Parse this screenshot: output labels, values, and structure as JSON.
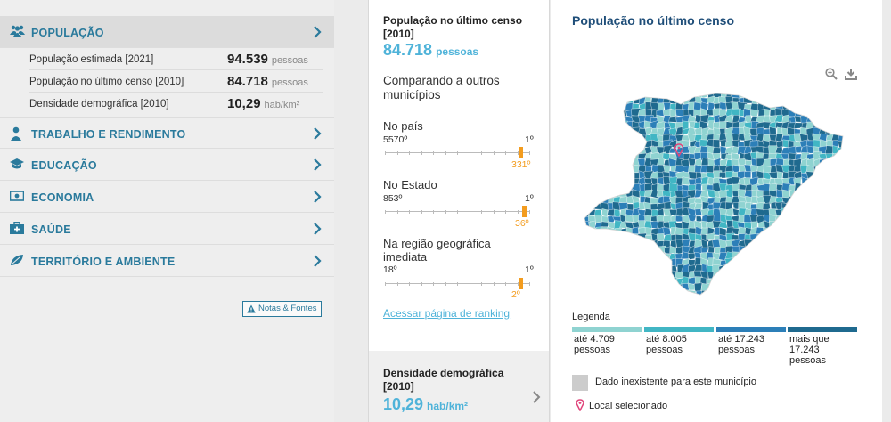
{
  "sidebar": {
    "sections": [
      {
        "label": "POPULAÇÃO",
        "icon": "people-icon",
        "active": true
      },
      {
        "label": "TRABALHO E RENDIMENTO",
        "icon": "worker-icon"
      },
      {
        "label": "EDUCAÇÃO",
        "icon": "graduation-cap-icon"
      },
      {
        "label": "ECONOMIA",
        "icon": "money-icon"
      },
      {
        "label": "SAÚDE",
        "icon": "medical-kit-icon"
      },
      {
        "label": "TERRITÓRIO E AMBIENTE",
        "icon": "leaf-icon"
      }
    ],
    "population_rows": [
      {
        "label": "População estimada [2021]",
        "value": "94.539",
        "unit": "pessoas"
      },
      {
        "label": "População no último censo [2010]",
        "value": "84.718",
        "unit": "pessoas"
      },
      {
        "label": "Densidade demográfica [2010]",
        "value": "10,29",
        "unit": "hab/km²"
      }
    ],
    "notes_button": "Notas & Fontes"
  },
  "middle": {
    "title": "População no último censo [2010]",
    "value": "84.718",
    "unit": "pessoas",
    "comparing": "Comparando a outros municípios",
    "rankings": [
      {
        "label": "No país",
        "worst": "5570º",
        "best": "1º",
        "rank": "331º",
        "position": 0.94
      },
      {
        "label": "No Estado",
        "worst": "853º",
        "best": "1º",
        "rank": "36º",
        "position": 0.96
      },
      {
        "label": "Na região geográfica imediata",
        "worst": "18º",
        "best": "1º",
        "rank": "2º",
        "position": 0.94
      }
    ],
    "ranking_link": "Acessar página de ranking",
    "density": {
      "title": "Densidade demográfica [2010]",
      "value": "10,29",
      "unit": "hab/km²"
    }
  },
  "map_panel": {
    "title": "População no último censo",
    "legend_title": "Legenda",
    "legend": [
      {
        "label": "até 4.709 pessoas",
        "color": "#8fd3d1"
      },
      {
        "label": "até 8.005 pessoas",
        "color": "#41b6c4"
      },
      {
        "label": "até 17.243 pessoas",
        "color": "#2c7fb8"
      },
      {
        "label": "mais que 17.243 pessoas",
        "color": "#1f6a8f"
      }
    ],
    "no_data": "Dado inexistente para este município",
    "selected": "Local selecionado",
    "colors": {
      "accent": "#2a7a9c",
      "highlight": "#4fb3d9",
      "rank": "#f39c1e",
      "marker": "#e0457b"
    }
  }
}
